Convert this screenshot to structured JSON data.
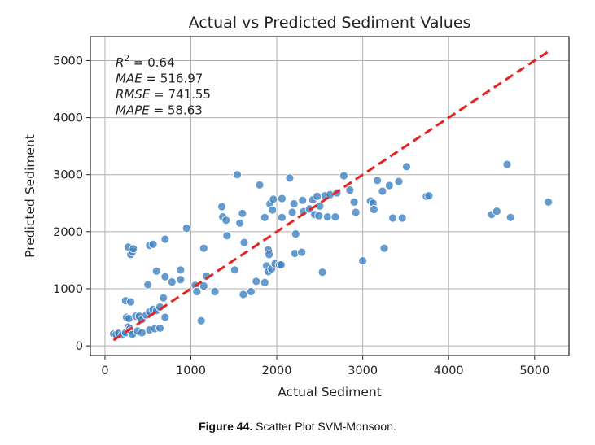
{
  "chart_data": {
    "type": "scatter",
    "title": "Actual vs Predicted Sediment Values",
    "xlabel": "Actual Sediment",
    "ylabel": "Predicted Sediment",
    "xlim": [
      -170,
      5400
    ],
    "ylim": [
      -170,
      5420
    ],
    "xticks": [
      0,
      1000,
      2000,
      3000,
      4000,
      5000
    ],
    "yticks": [
      0,
      1000,
      2000,
      3000,
      4000,
      5000
    ],
    "xtick_labels": [
      "0",
      "1000",
      "2000",
      "3000",
      "4000",
      "5000"
    ],
    "ytick_labels": [
      "0",
      "1000",
      "2000",
      "3000",
      "4000",
      "5000"
    ],
    "grid": true,
    "point_color": "#3a7fc1",
    "reference_line": {
      "style": "dashed",
      "color": "#e8231f",
      "from": [
        100,
        100
      ],
      "to": [
        5170,
        5170
      ],
      "label": "y = x"
    },
    "metrics": [
      {
        "name": "R",
        "sup": "2",
        "value": "0.64"
      },
      {
        "name": "MAE",
        "sup": "",
        "value": "516.97"
      },
      {
        "name": "RMSE",
        "sup": "",
        "value": "741.55"
      },
      {
        "name": "MAPE",
        "sup": "",
        "value": "58.63"
      }
    ],
    "points": [
      [
        100,
        210
      ],
      [
        130,
        200
      ],
      [
        160,
        220
      ],
      [
        200,
        190
      ],
      [
        240,
        230
      ],
      [
        270,
        330
      ],
      [
        290,
        300
      ],
      [
        300,
        260
      ],
      [
        320,
        200
      ],
      [
        250,
        500
      ],
      [
        280,
        480
      ],
      [
        360,
        520
      ],
      [
        400,
        520
      ],
      [
        430,
        460
      ],
      [
        480,
        540
      ],
      [
        520,
        600
      ],
      [
        560,
        640
      ],
      [
        600,
        620
      ],
      [
        640,
        680
      ],
      [
        380,
        260
      ],
      [
        430,
        230
      ],
      [
        520,
        280
      ],
      [
        580,
        300
      ],
      [
        640,
        310
      ],
      [
        700,
        500
      ],
      [
        240,
        790
      ],
      [
        300,
        770
      ],
      [
        500,
        1070
      ],
      [
        680,
        840
      ],
      [
        780,
        1120
      ],
      [
        600,
        1310
      ],
      [
        700,
        1210
      ],
      [
        880,
        1330
      ],
      [
        880,
        1160
      ],
      [
        1050,
        1060
      ],
      [
        270,
        1730
      ],
      [
        300,
        1600
      ],
      [
        320,
        1650
      ],
      [
        330,
        1700
      ],
      [
        520,
        1760
      ],
      [
        560,
        1780
      ],
      [
        700,
        1870
      ],
      [
        950,
        2060
      ],
      [
        1070,
        950
      ],
      [
        1120,
        440
      ],
      [
        1150,
        1050
      ],
      [
        1180,
        1220
      ],
      [
        1150,
        1710
      ],
      [
        1280,
        950
      ],
      [
        1360,
        2440
      ],
      [
        1370,
        2260
      ],
      [
        1410,
        2200
      ],
      [
        1420,
        1930
      ],
      [
        1510,
        1330
      ],
      [
        1540,
        3000
      ],
      [
        1570,
        2150
      ],
      [
        1600,
        2320
      ],
      [
        1610,
        900
      ],
      [
        1620,
        1810
      ],
      [
        1700,
        950
      ],
      [
        1760,
        1130
      ],
      [
        1800,
        2820
      ],
      [
        1860,
        1110
      ],
      [
        1860,
        2250
      ],
      [
        1880,
        1400
      ],
      [
        1900,
        1300
      ],
      [
        1900,
        1680
      ],
      [
        1910,
        1600
      ],
      [
        1920,
        2490
      ],
      [
        1940,
        1350
      ],
      [
        1950,
        2380
      ],
      [
        1960,
        2570
      ],
      [
        1980,
        1440
      ],
      [
        2030,
        1420
      ],
      [
        2050,
        1420
      ],
      [
        2060,
        2250
      ],
      [
        2060,
        2580
      ],
      [
        2150,
        2940
      ],
      [
        2180,
        2340
      ],
      [
        2200,
        2490
      ],
      [
        2210,
        1620
      ],
      [
        2220,
        1960
      ],
      [
        2290,
        1640
      ],
      [
        2300,
        2550
      ],
      [
        2310,
        2350
      ],
      [
        2380,
        2400
      ],
      [
        2420,
        2560
      ],
      [
        2440,
        2300
      ],
      [
        2470,
        2620
      ],
      [
        2490,
        2280
      ],
      [
        2500,
        2450
      ],
      [
        2530,
        1290
      ],
      [
        2560,
        2630
      ],
      [
        2590,
        2260
      ],
      [
        2620,
        2650
      ],
      [
        2680,
        2260
      ],
      [
        2700,
        2680
      ],
      [
        2780,
        2980
      ],
      [
        2850,
        2730
      ],
      [
        2900,
        2520
      ],
      [
        2920,
        2340
      ],
      [
        3000,
        1490
      ],
      [
        3090,
        2540
      ],
      [
        3120,
        2500
      ],
      [
        3130,
        2390
      ],
      [
        3170,
        2900
      ],
      [
        3230,
        2710
      ],
      [
        3250,
        1710
      ],
      [
        3310,
        2810
      ],
      [
        3350,
        2240
      ],
      [
        3420,
        2880
      ],
      [
        3460,
        2240
      ],
      [
        3510,
        3140
      ],
      [
        3740,
        2620
      ],
      [
        3770,
        2630
      ],
      [
        4500,
        2300
      ],
      [
        4560,
        2360
      ],
      [
        4680,
        3180
      ],
      [
        4720,
        2250
      ],
      [
        5160,
        2520
      ]
    ]
  },
  "caption": {
    "label": "Figure 44.",
    "text": " Scatter Plot SVM-Monsoon."
  }
}
